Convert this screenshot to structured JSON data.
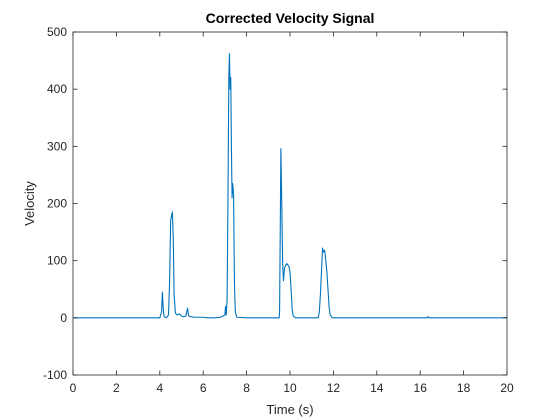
{
  "chart_data": {
    "type": "line",
    "title": "Corrected Velocity Signal",
    "xlabel": "Time (s)",
    "ylabel": "Velocity",
    "xlim": [
      0,
      20
    ],
    "ylim": [
      -100,
      500
    ],
    "xticks": [
      0,
      2,
      4,
      6,
      8,
      10,
      12,
      14,
      16,
      18,
      20
    ],
    "yticks": [
      -100,
      0,
      100,
      200,
      300,
      400,
      500
    ],
    "grid": false,
    "legend": "none",
    "series": [
      {
        "color": "#0072BD",
        "points": [
          [
            0,
            0
          ],
          [
            4.0,
            0
          ],
          [
            4.08,
            10
          ],
          [
            4.12,
            45
          ],
          [
            4.16,
            15
          ],
          [
            4.2,
            2
          ],
          [
            4.3,
            0
          ],
          [
            4.4,
            5
          ],
          [
            4.45,
            60
          ],
          [
            4.5,
            170
          ],
          [
            4.55,
            180
          ],
          [
            4.58,
            185
          ],
          [
            4.62,
            140
          ],
          [
            4.66,
            40
          ],
          [
            4.72,
            8
          ],
          [
            4.8,
            5
          ],
          [
            4.9,
            7
          ],
          [
            5.0,
            3
          ],
          [
            5.1,
            2
          ],
          [
            5.2,
            3
          ],
          [
            5.28,
            17
          ],
          [
            5.32,
            4
          ],
          [
            5.4,
            2
          ],
          [
            5.6,
            1
          ],
          [
            5.8,
            1
          ],
          [
            6.0,
            1
          ],
          [
            6.2,
            0
          ],
          [
            6.5,
            0
          ],
          [
            6.8,
            1
          ],
          [
            6.9,
            3
          ],
          [
            7.0,
            5
          ],
          [
            7.03,
            20
          ],
          [
            7.06,
            5
          ],
          [
            7.1,
            30
          ],
          [
            7.14,
            200
          ],
          [
            7.18,
            420
          ],
          [
            7.21,
            462
          ],
          [
            7.24,
            400
          ],
          [
            7.27,
            420
          ],
          [
            7.3,
            300
          ],
          [
            7.33,
            210
          ],
          [
            7.36,
            235
          ],
          [
            7.4,
            215
          ],
          [
            7.44,
            60
          ],
          [
            7.48,
            10
          ],
          [
            7.55,
            1
          ],
          [
            8.0,
            0
          ],
          [
            9.0,
            0
          ],
          [
            9.5,
            0
          ],
          [
            9.52,
            10
          ],
          [
            9.55,
            150
          ],
          [
            9.58,
            296
          ],
          [
            9.62,
            200
          ],
          [
            9.66,
            95
          ],
          [
            9.7,
            65
          ],
          [
            9.75,
            88
          ],
          [
            9.85,
            95
          ],
          [
            9.95,
            90
          ],
          [
            10.0,
            80
          ],
          [
            10.05,
            50
          ],
          [
            10.1,
            15
          ],
          [
            10.15,
            3
          ],
          [
            10.25,
            0
          ],
          [
            11.0,
            0
          ],
          [
            11.3,
            0
          ],
          [
            11.35,
            10
          ],
          [
            11.4,
            40
          ],
          [
            11.45,
            80
          ],
          [
            11.5,
            122
          ],
          [
            11.55,
            115
          ],
          [
            11.6,
            118
          ],
          [
            11.65,
            100
          ],
          [
            11.7,
            80
          ],
          [
            11.75,
            50
          ],
          [
            11.8,
            20
          ],
          [
            11.85,
            5
          ],
          [
            11.95,
            0
          ],
          [
            14.0,
            0
          ],
          [
            16.3,
            0
          ],
          [
            16.35,
            2
          ],
          [
            16.4,
            0
          ],
          [
            19.9,
            0
          ],
          [
            20,
            1
          ]
        ]
      }
    ]
  }
}
